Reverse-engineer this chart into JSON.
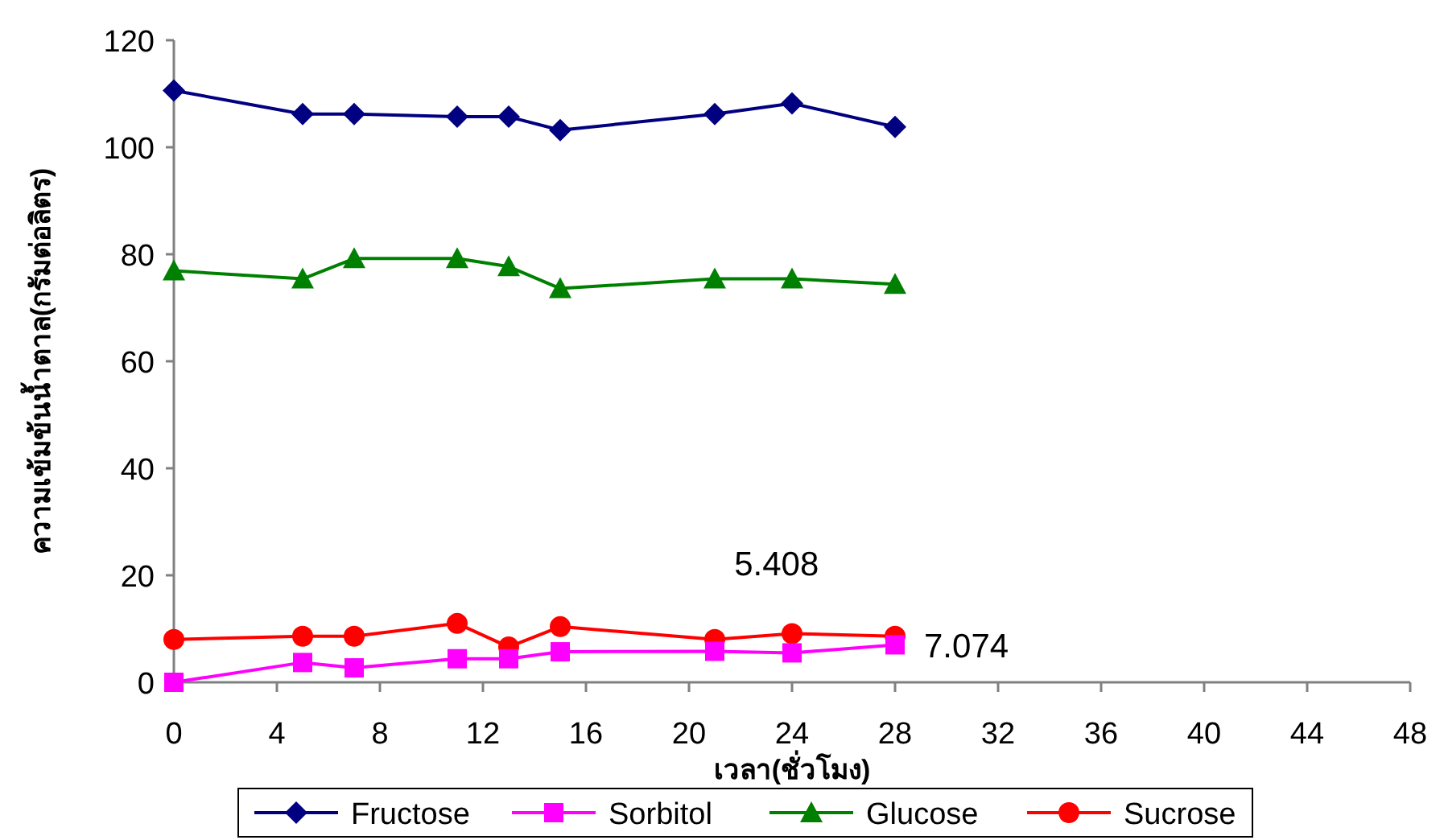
{
  "chart_data": {
    "type": "line",
    "xlabel": "เวลา(ชั่วโมง)",
    "ylabel": "ความเข้มข้นน้ำตาล(กรัมต่อลิตร)",
    "x": [
      0,
      5,
      7,
      11,
      13,
      15,
      21,
      24,
      28
    ],
    "xlim": [
      0,
      48
    ],
    "xticks": [
      0,
      4,
      8,
      12,
      16,
      20,
      24,
      28,
      32,
      36,
      40,
      44,
      48
    ],
    "ylim": [
      0,
      120
    ],
    "yticks": [
      0,
      20,
      40,
      60,
      80,
      100,
      120
    ],
    "grid": false,
    "legend": "bottom",
    "line_style": "solid",
    "series": [
      {
        "name": "Fructose",
        "color": "#000080",
        "marker": "diamond",
        "values": [
          110.6,
          106.2,
          106.2,
          105.7,
          105.7,
          103.2,
          106.2,
          108.2,
          103.8
        ]
      },
      {
        "name": "Sorbitol",
        "color": "#ff00ff",
        "marker": "square",
        "values": [
          0,
          3.7,
          2.7,
          4.4,
          4.4,
          5.7,
          5.8,
          5.5,
          7.0
        ]
      },
      {
        "name": "Glucose",
        "color": "#008000",
        "marker": "triangle",
        "values": [
          76.9,
          75.4,
          79.2,
          79.2,
          77.7,
          73.6,
          75.4,
          75.4,
          74.4
        ]
      },
      {
        "name": "Sucrose",
        "color": "#ff0000",
        "marker": "circle",
        "values": [
          8.0,
          8.6,
          8.6,
          11.0,
          6.6,
          10.4,
          8.0,
          9.1,
          8.6
        ]
      }
    ],
    "annotations": [
      "5.408",
      {
        "text": "7.074",
        "x": 28,
        "y": 7.0
      }
    ]
  }
}
